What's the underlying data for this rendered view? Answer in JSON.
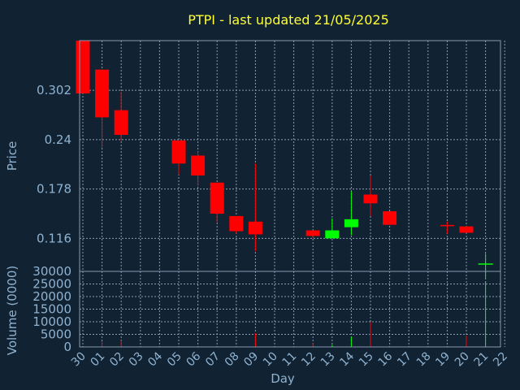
{
  "chart_data": {
    "type": "candlestick",
    "title": "PTPI - last updated 21/05/2025",
    "xlabel": "Day",
    "ylabel_price": "Price",
    "ylabel_volume": "Volume (0000)",
    "x_tick_labels": [
      "30",
      "01",
      "02",
      "03",
      "04",
      "05",
      "06",
      "07",
      "08",
      "09",
      "10",
      "11",
      "12",
      "13",
      "14",
      "15",
      "16",
      "17",
      "18",
      "19",
      "20",
      "21",
      "22"
    ],
    "price_ticks": [
      "0.116",
      "0.178",
      "0.24",
      "0.302"
    ],
    "volume_ticks": [
      "0",
      "5000",
      "10000",
      "15000",
      "20000",
      "25000",
      "30000"
    ],
    "price_ylim": [
      0.0745,
      0.3644
    ],
    "volume_ylim": [
      0,
      30000
    ],
    "grid": true,
    "colors": {
      "background": "#112233",
      "title": "#ffff33",
      "text": "#8fb3d0",
      "grid": "#8a9bb0",
      "down": "#ff0000",
      "up": "#00ff00"
    },
    "candles": [
      {
        "x": "30",
        "open": 0.365,
        "close": 0.298,
        "high": 0.365,
        "low": 0.298,
        "volume": 0
      },
      {
        "x": "01",
        "open": 0.328,
        "close": 0.268,
        "high": 0.328,
        "low": 0.23,
        "volume": 2200
      },
      {
        "x": "02",
        "open": 0.277,
        "close": 0.246,
        "high": 0.3,
        "low": 0.238,
        "volume": 2500
      },
      {
        "x": "05",
        "open": 0.239,
        "close": 0.21,
        "high": 0.239,
        "low": 0.196,
        "volume": 0
      },
      {
        "x": "06",
        "open": 0.22,
        "close": 0.195,
        "high": 0.225,
        "low": 0.182,
        "volume": 0
      },
      {
        "x": "07",
        "open": 0.186,
        "close": 0.147,
        "high": 0.186,
        "low": 0.136,
        "volume": 0
      },
      {
        "x": "08",
        "open": 0.144,
        "close": 0.125,
        "high": 0.144,
        "low": 0.122,
        "volume": 0
      },
      {
        "x": "09",
        "open": 0.137,
        "close": 0.121,
        "high": 0.21,
        "low": 0.1,
        "volume": 5500
      },
      {
        "x": "12",
        "open": 0.126,
        "close": 0.119,
        "high": 0.126,
        "low": 0.116,
        "volume": 1500
      },
      {
        "x": "13",
        "open": 0.116,
        "close": 0.126,
        "high": 0.141,
        "low": 0.116,
        "volume": 800
      },
      {
        "x": "14",
        "open": 0.13,
        "close": 0.14,
        "high": 0.175,
        "low": 0.12,
        "volume": 4000
      },
      {
        "x": "15",
        "open": 0.171,
        "close": 0.16,
        "high": 0.195,
        "low": 0.144,
        "volume": 10000
      },
      {
        "x": "16",
        "open": 0.15,
        "close": 0.133,
        "high": 0.15,
        "low": 0.133,
        "volume": 0
      },
      {
        "x": "19",
        "open": 0.132,
        "close": 0.132,
        "high": 0.137,
        "low": 0.122,
        "volume": 0
      },
      {
        "x": "20",
        "open": 0.131,
        "close": 0.123,
        "high": 0.131,
        "low": 0.123,
        "volume": 4500
      },
      {
        "x": "21",
        "volume": 26000
      }
    ],
    "volume_marker": {
      "x": "21",
      "value": 30000,
      "high": 37000,
      "low": 27000
    }
  }
}
